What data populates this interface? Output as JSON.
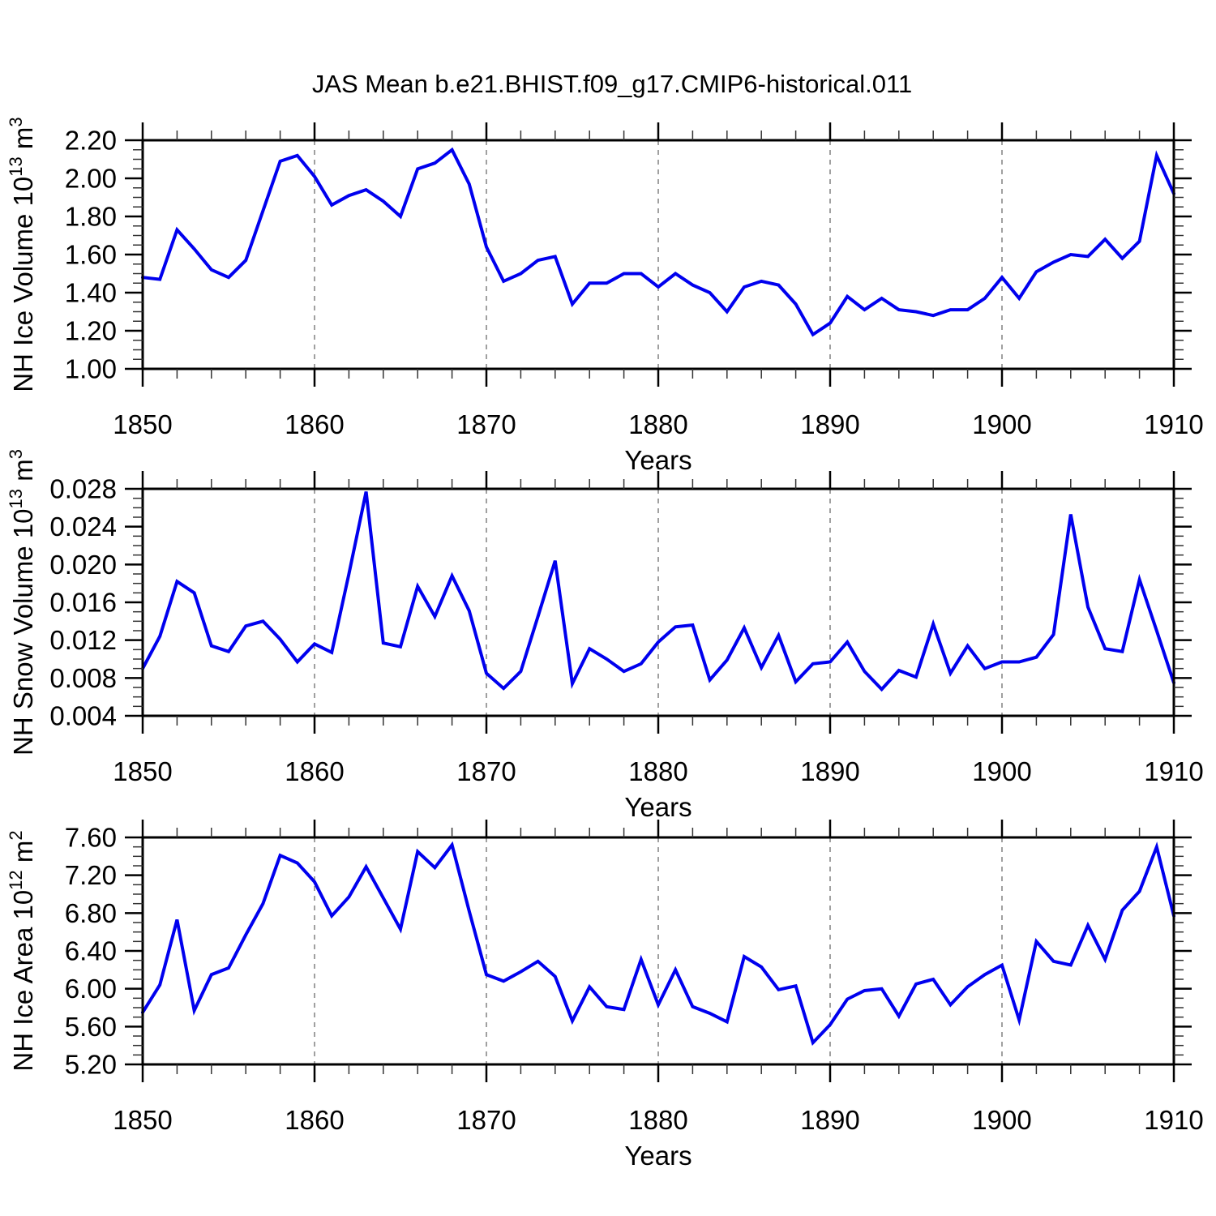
{
  "title": "JAS Mean b.e21.BHIST.f09_g17.CMIP6-historical.011",
  "xlabel": "Years",
  "x_tick_labels": [
    "1850",
    "1860",
    "1870",
    "1880",
    "1890",
    "1900",
    "1910"
  ],
  "colors": {
    "line": "#0000EE",
    "axis": "#000000",
    "minor_tick": "#333333",
    "grid": "#808080",
    "background": "#FFFFFF"
  },
  "years": [
    1850,
    1851,
    1852,
    1853,
    1854,
    1855,
    1856,
    1857,
    1858,
    1859,
    1860,
    1861,
    1862,
    1863,
    1864,
    1865,
    1866,
    1867,
    1868,
    1869,
    1870,
    1871,
    1872,
    1873,
    1874,
    1875,
    1876,
    1877,
    1878,
    1879,
    1880,
    1881,
    1882,
    1883,
    1884,
    1885,
    1886,
    1887,
    1888,
    1889,
    1890,
    1891,
    1892,
    1893,
    1894,
    1895,
    1896,
    1897,
    1898,
    1899,
    1900,
    1901,
    1902,
    1903,
    1904,
    1905,
    1906,
    1907,
    1908,
    1909,
    1910
  ],
  "chart_data": [
    {
      "type": "line",
      "name": "nh-ice-volume",
      "title": "JAS Mean b.e21.BHIST.f09_g17.CMIP6-historical.011",
      "xlabel": "Years",
      "ylabel": "NH Ice Volume 10¹³ m³",
      "ylabel_segments": [
        [
          "NH Ice Volume 10",
          false
        ],
        [
          "13",
          true
        ],
        [
          " m",
          false
        ],
        [
          "3",
          true
        ]
      ],
      "x_range": [
        1850,
        1910
      ],
      "x_step": 1,
      "x_major_step": 10,
      "x_minor_step": 2,
      "ylim": [
        1.0,
        2.2
      ],
      "y_major_step": 0.2,
      "y_minor_step": 0.05,
      "y_tick_labels": [
        "1.00",
        "1.20",
        "1.40",
        "1.60",
        "1.80",
        "2.00",
        "2.20"
      ],
      "grid": "vertical-dashed-at-decades",
      "legend": "none",
      "values": [
        1.48,
        1.47,
        1.73,
        1.63,
        1.52,
        1.48,
        1.57,
        1.83,
        2.09,
        2.12,
        2.01,
        1.86,
        1.91,
        1.94,
        1.88,
        1.8,
        2.05,
        2.08,
        2.15,
        1.97,
        1.64,
        1.46,
        1.5,
        1.57,
        1.59,
        1.34,
        1.45,
        1.45,
        1.5,
        1.5,
        1.43,
        1.5,
        1.44,
        1.4,
        1.3,
        1.43,
        1.46,
        1.44,
        1.34,
        1.18,
        1.24,
        1.38,
        1.31,
        1.37,
        1.31,
        1.3,
        1.28,
        1.31,
        1.31,
        1.37,
        1.48,
        1.37,
        1.51,
        1.56,
        1.6,
        1.59,
        1.68,
        1.58,
        1.67,
        2.12,
        1.92
      ]
    },
    {
      "type": "line",
      "name": "nh-snow-volume",
      "title": "",
      "xlabel": "Years",
      "ylabel": "NH Snow Volume 10¹³ m³",
      "ylabel_segments": [
        [
          "NH Snow Volume 10",
          false
        ],
        [
          "13",
          true
        ],
        [
          " m",
          false
        ],
        [
          "3",
          true
        ]
      ],
      "x_range": [
        1850,
        1910
      ],
      "x_step": 1,
      "x_major_step": 10,
      "x_minor_step": 2,
      "ylim": [
        0.004,
        0.028
      ],
      "y_major_step": 0.004,
      "y_minor_step": 0.001,
      "y_tick_labels": [
        "0.004",
        "0.008",
        "0.012",
        "0.016",
        "0.020",
        "0.024",
        "0.028"
      ],
      "grid": "vertical-dashed-at-decades",
      "legend": "none",
      "values": [
        0.009,
        0.0124,
        0.0182,
        0.017,
        0.0114,
        0.0108,
        0.0135,
        0.014,
        0.0121,
        0.0097,
        0.0116,
        0.0107,
        0.019,
        0.0277,
        0.0117,
        0.0113,
        0.0177,
        0.0145,
        0.0188,
        0.0151,
        0.0085,
        0.0069,
        0.0087,
        0.0145,
        0.0204,
        0.0074,
        0.0111,
        0.01,
        0.0087,
        0.0095,
        0.0118,
        0.0134,
        0.0136,
        0.0078,
        0.0099,
        0.0133,
        0.0091,
        0.0125,
        0.0076,
        0.0095,
        0.0097,
        0.0118,
        0.0087,
        0.0068,
        0.0088,
        0.0081,
        0.0137,
        0.0085,
        0.0114,
        0.009,
        0.0097,
        0.0097,
        0.0102,
        0.0126,
        0.0253,
        0.0155,
        0.0111,
        0.0108,
        0.0184,
        0.013,
        0.0075
      ]
    },
    {
      "type": "line",
      "name": "nh-ice-area",
      "title": "",
      "xlabel": "Years",
      "ylabel": "NH Ice Area 10¹² m²",
      "ylabel_segments": [
        [
          "NH Ice Area 10",
          false
        ],
        [
          "12",
          true
        ],
        [
          " m",
          false
        ],
        [
          "2",
          true
        ]
      ],
      "x_range": [
        1850,
        1910
      ],
      "x_step": 1,
      "x_major_step": 10,
      "x_minor_step": 2,
      "ylim": [
        5.2,
        7.6
      ],
      "y_major_step": 0.4,
      "y_minor_step": 0.1,
      "y_tick_labels": [
        "5.20",
        "5.60",
        "6.00",
        "6.40",
        "6.80",
        "7.20",
        "7.60"
      ],
      "grid": "vertical-dashed-at-decades",
      "legend": "none",
      "values": [
        5.75,
        6.04,
        6.73,
        5.77,
        6.15,
        6.22,
        6.57,
        6.9,
        7.41,
        7.33,
        7.13,
        6.77,
        6.97,
        7.29,
        6.96,
        6.63,
        7.45,
        7.28,
        7.52,
        6.82,
        6.15,
        6.08,
        6.18,
        6.29,
        6.13,
        5.66,
        6.02,
        5.81,
        5.78,
        6.31,
        5.83,
        6.2,
        5.81,
        5.74,
        5.65,
        6.34,
        6.23,
        5.99,
        6.03,
        5.43,
        5.62,
        5.89,
        5.98,
        6.0,
        5.71,
        6.05,
        6.1,
        5.83,
        6.02,
        6.15,
        6.25,
        5.67,
        6.5,
        6.29,
        6.25,
        6.67,
        6.31,
        6.83,
        7.03,
        7.5,
        6.77
      ]
    }
  ]
}
